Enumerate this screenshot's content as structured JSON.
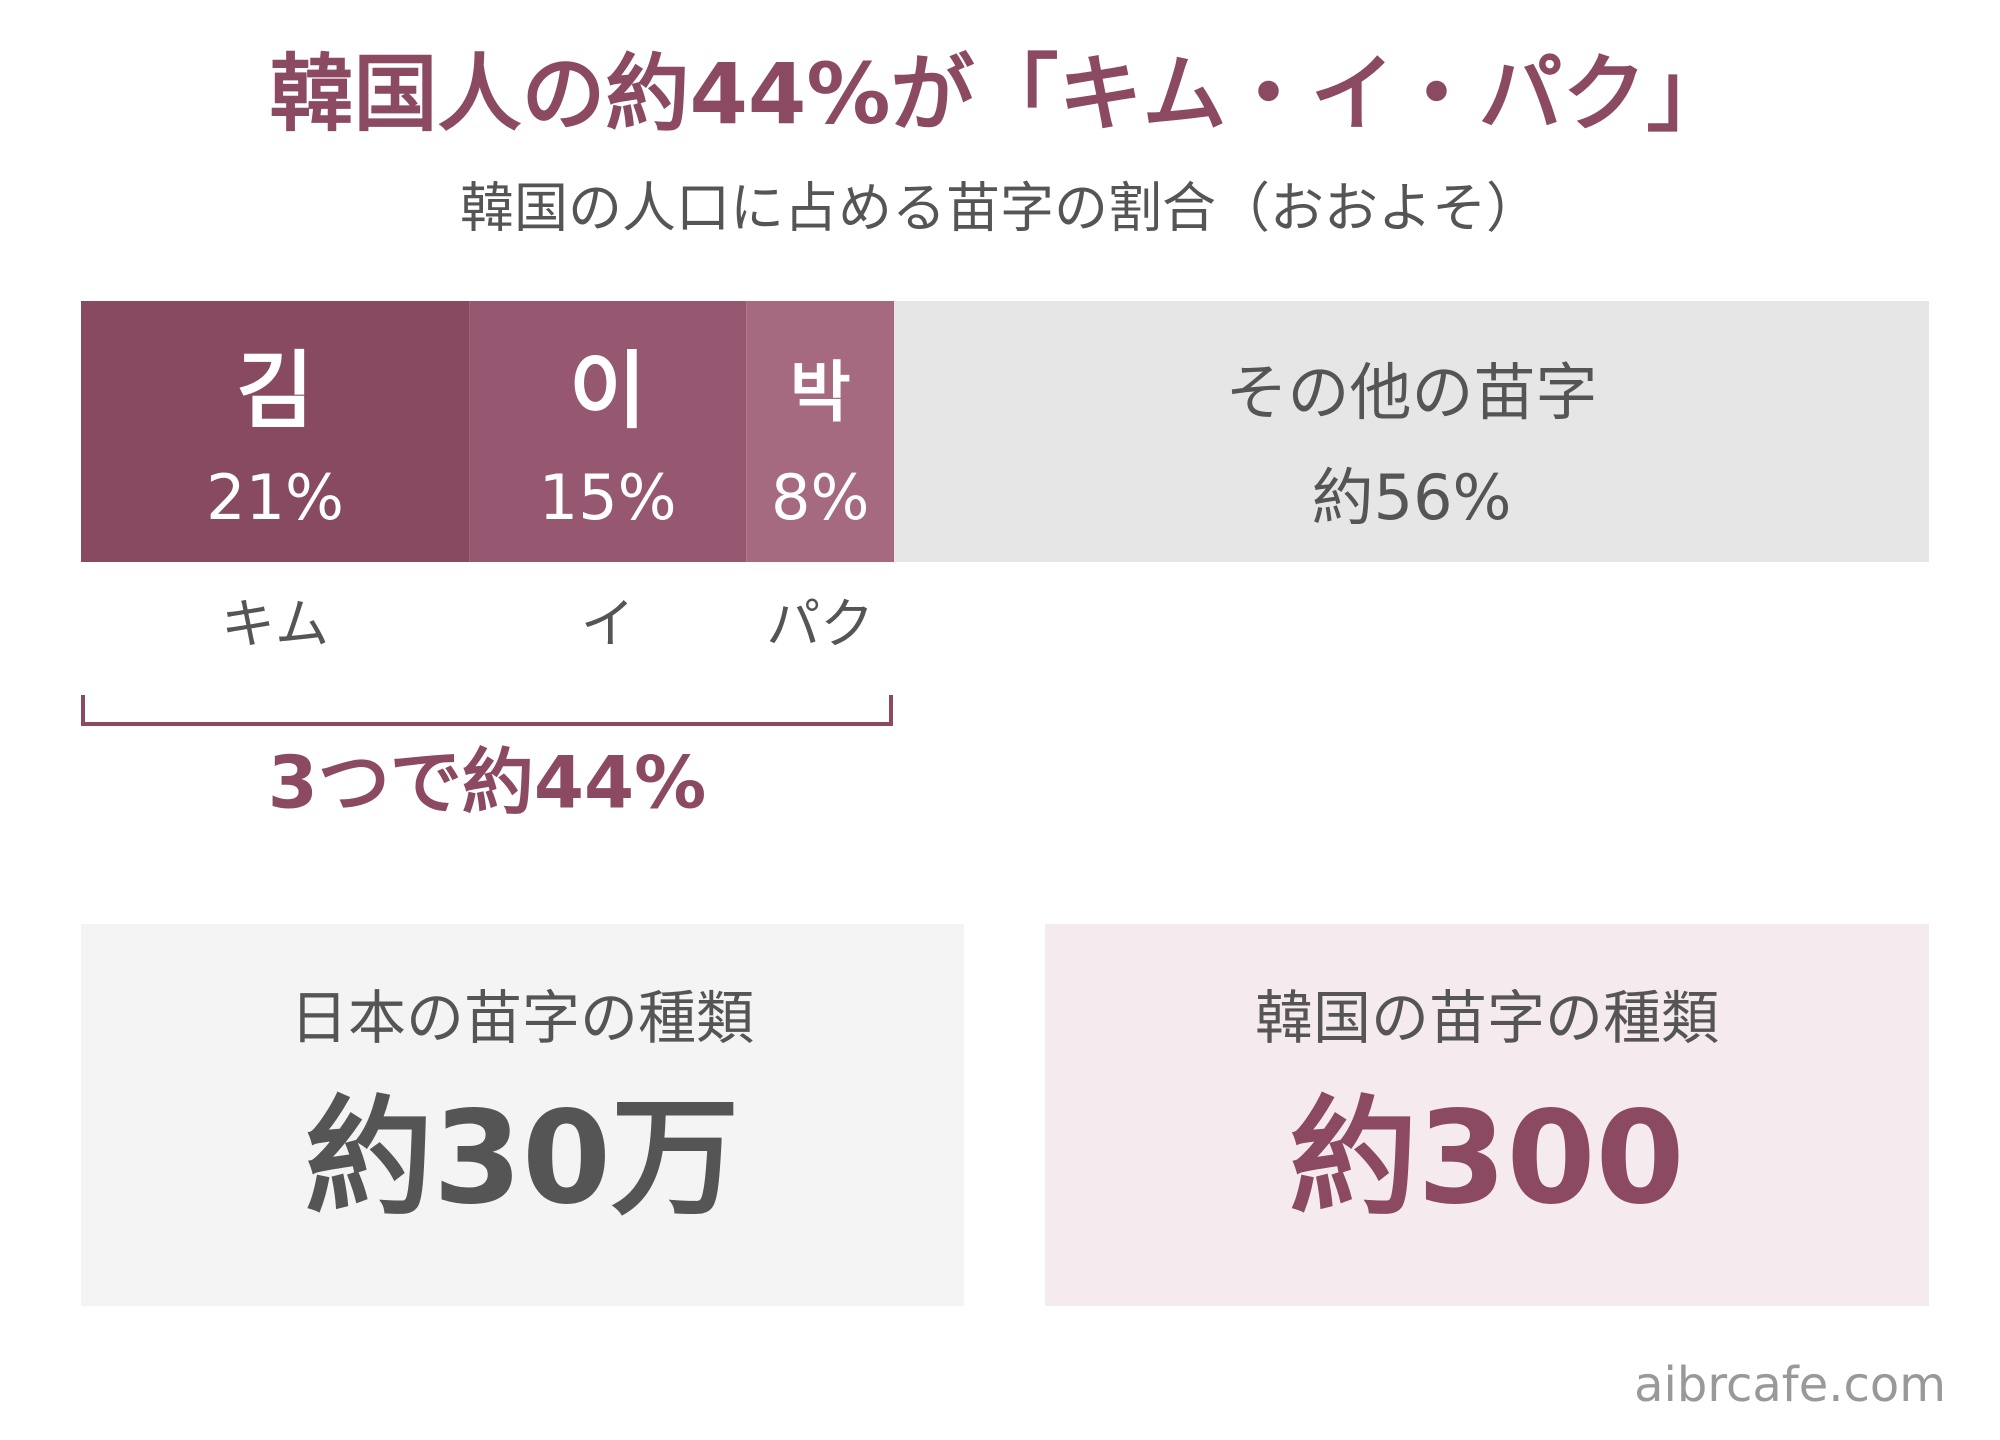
{
  "chart_data": {
    "type": "stacked-bar",
    "title": "韓国人の約44%が「キム・イ・パク」",
    "subtitle": "韓国の人口に占める苗字の割合（おおよそ）",
    "categories": [
      "김",
      "이",
      "박",
      "その他の苗字"
    ],
    "readings": [
      "キム",
      "イ",
      "パク"
    ],
    "values": [
      21,
      15,
      8,
      56
    ],
    "value_labels": [
      "21%",
      "15%",
      "8%",
      "約56%"
    ],
    "colors": [
      "#874a60",
      "#955870",
      "#a66a80",
      "#e6e6e6"
    ],
    "annotation": "3つで約44%"
  },
  "cards": [
    {
      "label": "日本の苗字の種類",
      "value": "約30万"
    },
    {
      "label": "韓国の苗字の種類",
      "value": "約300"
    }
  ],
  "footer": "aibrcafe.com"
}
